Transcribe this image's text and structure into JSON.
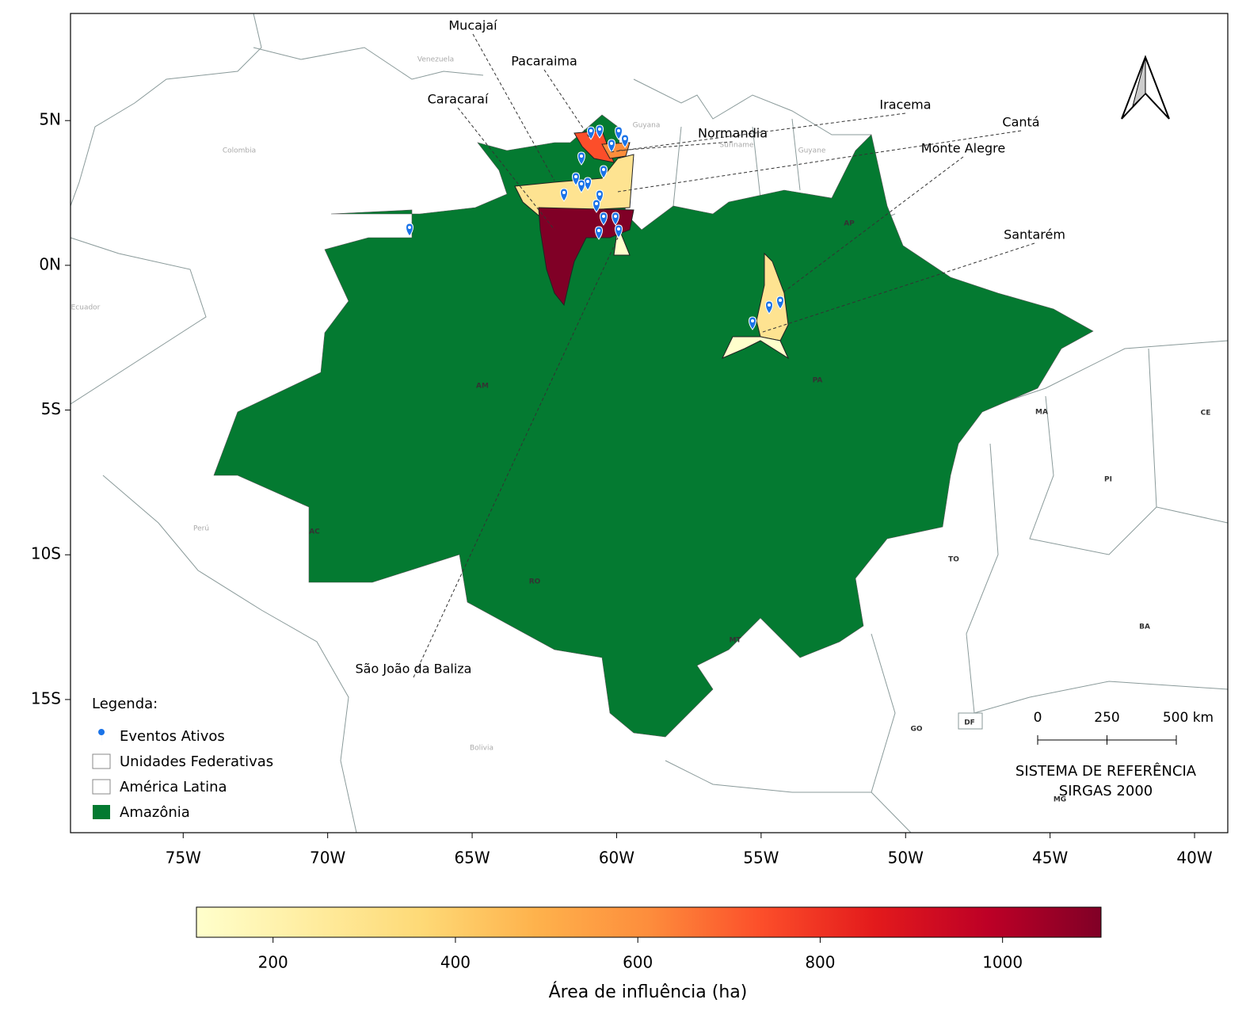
{
  "map": {
    "xlim": [
      -78.9,
      -38.85
    ],
    "ylim": [
      -19.6,
      8.7
    ],
    "lon_ticks": [
      {
        "value": -75,
        "label": "75W"
      },
      {
        "value": -70,
        "label": "70W"
      },
      {
        "value": -65,
        "label": "65W"
      },
      {
        "value": -60,
        "label": "60W"
      },
      {
        "value": -55,
        "label": "55W"
      },
      {
        "value": -50,
        "label": "50W"
      },
      {
        "value": -45,
        "label": "45W"
      },
      {
        "value": -40,
        "label": "40W"
      }
    ],
    "lat_ticks": [
      {
        "value": 5,
        "label": "5N"
      },
      {
        "value": 0,
        "label": "0N"
      },
      {
        "value": -5,
        "label": "5S"
      },
      {
        "value": -10,
        "label": "10S"
      },
      {
        "value": -15,
        "label": "15S"
      }
    ],
    "municipalities": [
      "Mucajaí",
      "Pacaraima",
      "Caracaraí",
      "Iracema",
      "Normandia",
      "Cantá",
      "Monte Alegre",
      "Santarém",
      "São João da Baliza"
    ],
    "country_labels": [
      "Venezuela",
      "Colombia",
      "Guyana",
      "Suriname",
      "Guyane",
      "Ecuador",
      "Perú",
      "Bolivia"
    ],
    "state_labels": [
      "AM",
      "PA",
      "AP",
      "AC",
      "RO",
      "MT",
      "TO",
      "MA",
      "PI",
      "CE",
      "BA",
      "GO",
      "DF",
      "MG"
    ],
    "legend": {
      "title": "Legenda:",
      "items": [
        "Eventos Ativos",
        "Unidades Federativas",
        "América Latina",
        "Amazônia"
      ]
    },
    "scale_bar": {
      "ticks": [
        0,
        250,
        {
          "value": 500,
          "label": "500 km"
        }
      ]
    },
    "crs": [
      "SISTEMA DE REFERÊNCIA",
      "SIRGAS 2000"
    ],
    "colorbar": {
      "label": "Área de influência (ha)",
      "range": [
        116,
        1108
      ],
      "ticks": [
        200,
        400,
        600,
        800,
        1000
      ],
      "colors": [
        "#ffffcc",
        "#ffeda0",
        "#fed976",
        "#feb24c",
        "#fd8d3c",
        "#fc4e2a",
        "#e31a1c",
        "#bd0026",
        "#800026"
      ]
    }
  }
}
